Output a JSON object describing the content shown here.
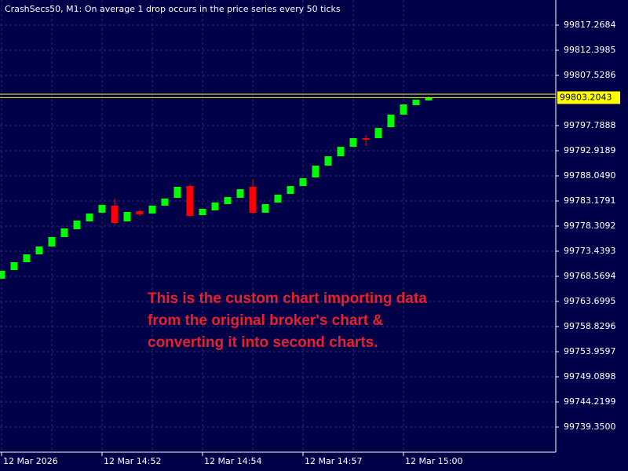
{
  "chart_data": {
    "type": "candlestick",
    "title": "CrashSecs50, M1:  On average 1 drop occurs in the price series every 50 ticks",
    "annotation": [
      "This is the custom chart importing data",
      "from the original broker's chart &",
      "converting it into second charts."
    ],
    "categories": [
      "12 Mar 2026",
      null,
      null,
      null,
      null,
      null,
      null,
      null,
      "12 Mar 14:52",
      null,
      null,
      null,
      null,
      null,
      null,
      null,
      "12 Mar 14:54",
      null,
      null,
      null,
      null,
      null,
      null,
      null,
      "12 Mar 14:57",
      null,
      null,
      null,
      null,
      null,
      null,
      null,
      "12 Mar 15:00",
      null,
      null
    ],
    "open": [
      99768.11,
      99769.79,
      99771.31,
      99772.83,
      99774.35,
      99776.18,
      99777.7,
      99779.22,
      99780.9,
      99782.27,
      99779.22,
      99781.2,
      99780.75,
      99782.27,
      99783.79,
      99786.07,
      99780.44,
      99781.35,
      99782.57,
      99783.79,
      99785.92,
      99780.9,
      99782.88,
      99784.55,
      99786.07,
      99787.75,
      99790.03,
      99791.85,
      99793.68,
      99795.35,
      99795.35,
      99797.49,
      99799.92,
      99801.75,
      99802.66
    ],
    "high": [
      99769.64,
      99771.31,
      99772.83,
      99774.35,
      99776.18,
      99777.85,
      99779.38,
      99780.75,
      99782.42,
      99783.64,
      99781.05,
      99781.51,
      99782.27,
      99783.64,
      99785.92,
      99786.38,
      99781.66,
      99782.88,
      99783.94,
      99785.46,
      99787.44,
      99782.57,
      99784.4,
      99786.07,
      99787.59,
      99790.03,
      99791.85,
      99793.68,
      99795.35,
      99795.96,
      99797.33,
      99799.92,
      99801.9,
      99802.81,
      99803.42
    ],
    "low": [
      99768.11,
      99769.79,
      99771.31,
      99772.83,
      99774.35,
      99776.18,
      99777.7,
      99779.22,
      99780.9,
      99778.62,
      99779.22,
      99780.29,
      99780.75,
      99782.27,
      99783.79,
      99780.14,
      99780.44,
      99781.35,
      99782.57,
      99783.79,
      99780.75,
      99780.9,
      99782.88,
      99784.55,
      99786.07,
      99787.75,
      99790.03,
      99791.85,
      99793.68,
      99793.83,
      99795.35,
      99797.49,
      99799.92,
      99801.75,
      99802.66
    ],
    "close": [
      99769.64,
      99771.31,
      99772.83,
      99774.35,
      99776.18,
      99777.85,
      99779.38,
      99780.75,
      99782.42,
      99778.92,
      99781.05,
      99780.59,
      99782.27,
      99783.64,
      99785.92,
      99780.29,
      99781.66,
      99782.88,
      99783.94,
      99785.46,
      99780.9,
      99782.57,
      99784.4,
      99786.07,
      99787.59,
      99790.03,
      99791.85,
      99793.68,
      99795.35,
      99795.05,
      99797.33,
      99799.92,
      99801.9,
      99802.81,
      99803.2
    ],
    "up_color": "#00ff00",
    "down_color": "#ff0000",
    "bid": 99803.2043,
    "ask": 99803.88,
    "price_line_color": "#ffff00",
    "ylim": [
      99734.48,
      99822.14
    ],
    "yticks": [
      99817.2684,
      99812.3985,
      99807.5286,
      99797.7888,
      99792.9189,
      {
        "value": 99788.049,
        "label": "99788.0490"
      },
      99783.1791,
      99778.3092,
      99773.4393,
      99768.5694,
      99763.6995,
      99758.8296,
      99753.9597,
      99749.0898,
      99744.2199,
      {
        "value": 99739.35,
        "label": "99739.3500"
      }
    ],
    "grid": true
  }
}
